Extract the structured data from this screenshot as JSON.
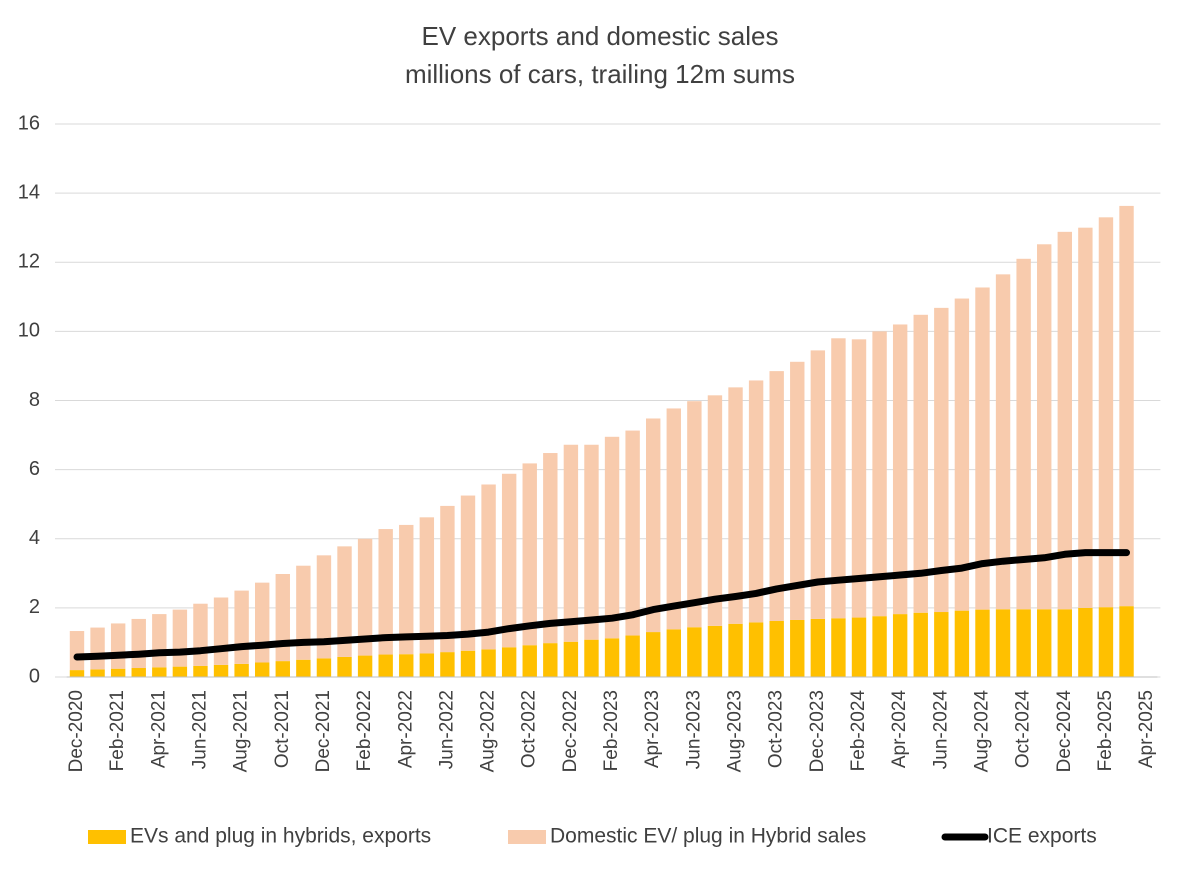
{
  "chart_data": {
    "type": "bar",
    "title": "EV exports and domestic sales",
    "subtitle": "millions of cars, trailing 12m sums",
    "stacked": true,
    "categories": [
      "Dec-2020",
      null,
      "Feb-2021",
      null,
      "Apr-2021",
      null,
      "Jun-2021",
      null,
      "Aug-2021",
      null,
      "Oct-2021",
      null,
      "Dec-2021",
      null,
      "Feb-2022",
      null,
      "Apr-2022",
      null,
      "Jun-2022",
      null,
      "Aug-2022",
      null,
      "Oct-2022",
      null,
      "Dec-2022",
      null,
      "Feb-2023",
      null,
      "Apr-2023",
      null,
      "Jun-2023",
      null,
      "Aug-2023",
      null,
      "Oct-2023",
      null,
      "Dec-2023",
      null,
      "Feb-2024",
      null,
      "Apr-2024",
      null,
      "Jun-2024",
      null,
      "Aug-2024",
      null,
      "Oct-2024",
      null,
      "Dec-2024",
      null,
      "Feb-2025",
      null,
      "Apr-2025"
    ],
    "series": [
      {
        "name": "EVs and plug in hybrids, exports",
        "type": "bar",
        "color": "#ffc000",
        "values": [
          0.2,
          0.22,
          0.24,
          0.26,
          0.28,
          0.3,
          0.32,
          0.35,
          0.38,
          0.42,
          0.46,
          0.5,
          0.54,
          0.58,
          0.62,
          0.65,
          0.66,
          0.68,
          0.72,
          0.76,
          0.8,
          0.86,
          0.92,
          0.98,
          1.02,
          1.08,
          1.12,
          1.2,
          1.3,
          1.38,
          1.44,
          1.48,
          1.54,
          1.58,
          1.62,
          1.65,
          1.68,
          1.7,
          1.72,
          1.76,
          1.82,
          1.86,
          1.88,
          1.92,
          1.95,
          1.96,
          1.96,
          1.96,
          1.96,
          2.0,
          2.02,
          2.05,
          null
        ]
      },
      {
        "name": "Domestic EV/ plug in Hybrid sales",
        "type": "bar",
        "color": "#f8cbad",
        "values": [
          1.13,
          1.21,
          1.31,
          1.42,
          1.54,
          1.65,
          1.8,
          1.95,
          2.12,
          2.31,
          2.52,
          2.72,
          2.98,
          3.2,
          3.38,
          3.63,
          3.74,
          3.94,
          4.23,
          4.49,
          4.77,
          5.02,
          5.26,
          5.5,
          5.7,
          5.64,
          5.83,
          5.93,
          6.18,
          6.39,
          6.54,
          6.67,
          6.84,
          7.0,
          7.23,
          7.47,
          7.77,
          8.1,
          8.05,
          8.24,
          8.38,
          8.62,
          8.8,
          9.03,
          9.32,
          9.69,
          10.14,
          10.56,
          10.92,
          11.0,
          11.28,
          11.58,
          null
        ]
      },
      {
        "name": "ICE exports",
        "type": "line",
        "color": "#000000",
        "values": [
          0.58,
          0.6,
          0.63,
          0.66,
          0.7,
          0.72,
          0.76,
          0.82,
          0.88,
          0.92,
          0.97,
          1.0,
          1.02,
          1.06,
          1.1,
          1.14,
          1.16,
          1.18,
          1.2,
          1.24,
          1.3,
          1.4,
          1.48,
          1.55,
          1.6,
          1.65,
          1.7,
          1.8,
          1.95,
          2.05,
          2.15,
          2.25,
          2.33,
          2.42,
          2.55,
          2.65,
          2.75,
          2.8,
          2.85,
          2.9,
          2.95,
          3.0,
          3.08,
          3.15,
          3.28,
          3.35,
          3.4,
          3.45,
          3.55,
          3.6,
          3.6,
          3.6,
          null
        ]
      }
    ],
    "ylim": [
      0,
      16
    ],
    "yticks": [
      0,
      2,
      4,
      6,
      8,
      10,
      12,
      14,
      16
    ],
    "grid": true,
    "legend": "bottom"
  }
}
